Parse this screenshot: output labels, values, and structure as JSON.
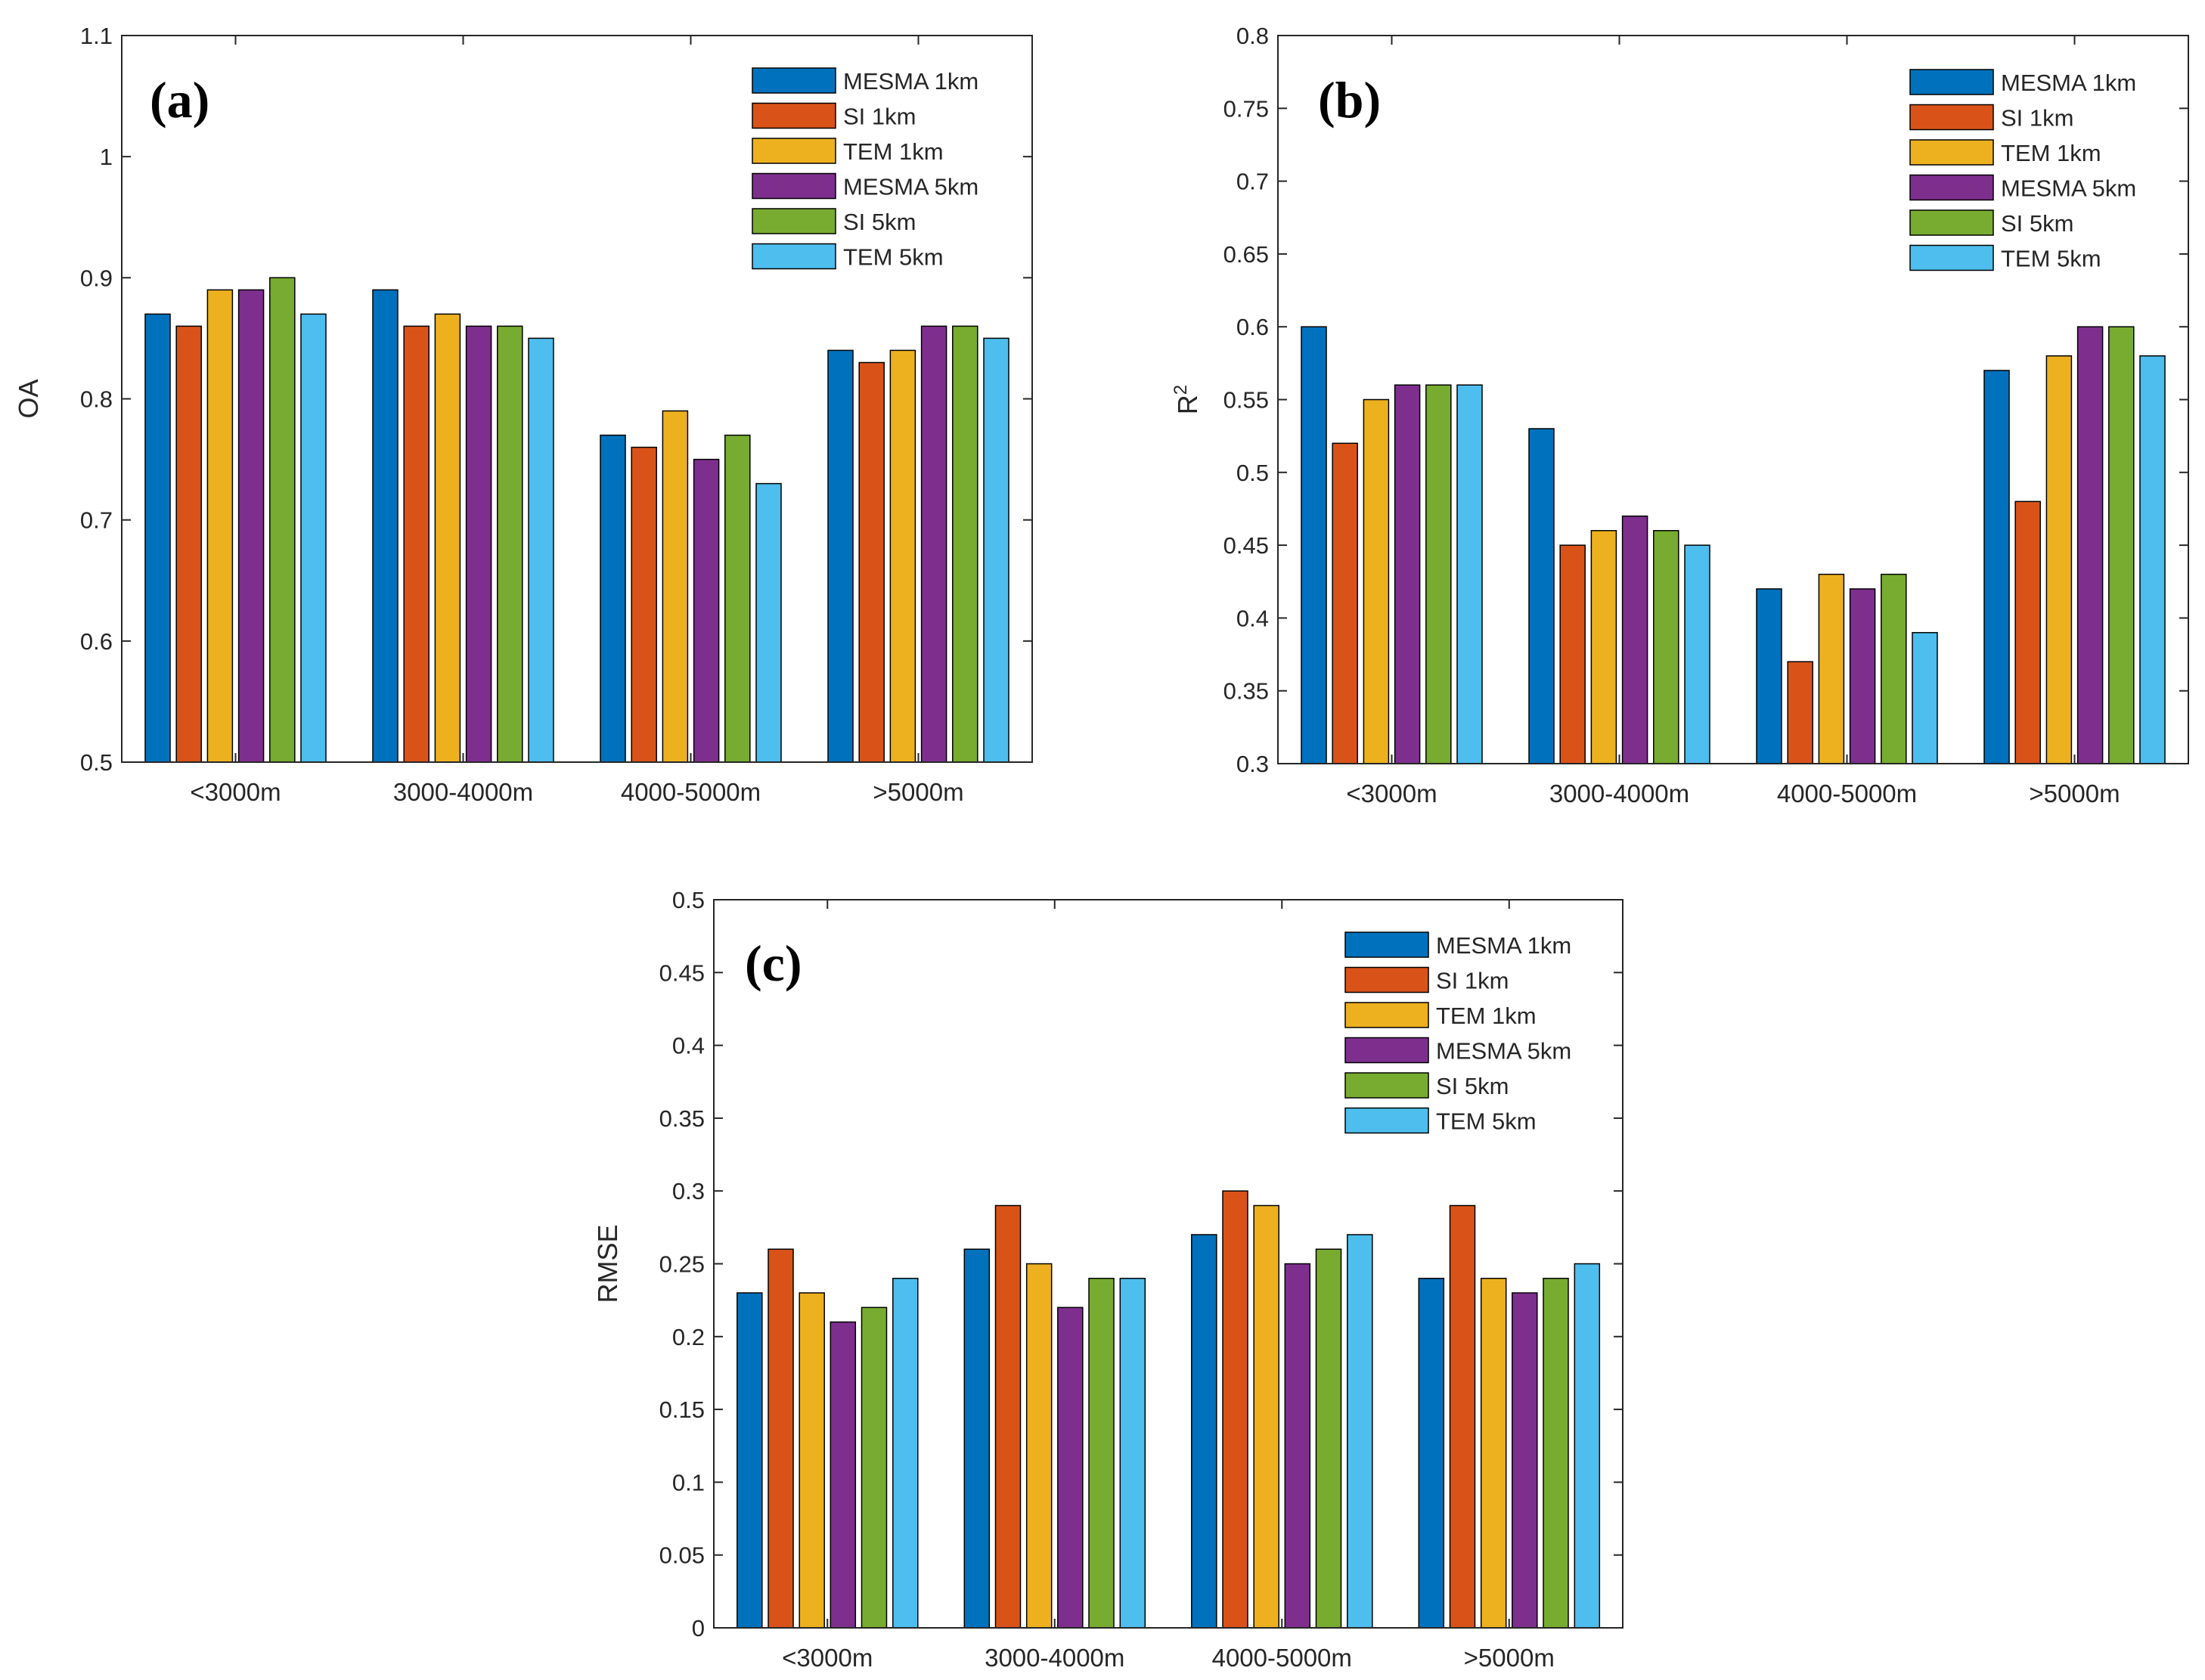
{
  "chart_data": [
    {
      "type": "bar",
      "panel_label": "(a)",
      "ylabel": "OA",
      "ylabel_sup": "",
      "categories": [
        "<3000m",
        "3000-4000m",
        "4000-5000m",
        ">5000m"
      ],
      "ylim": [
        0.5,
        1.1
      ],
      "yticks": [
        "0.5",
        "0.6",
        "0.7",
        "0.8",
        "0.9",
        "1",
        "1.1"
      ],
      "legend_position": "top-right",
      "series": [
        {
          "name": "MESMA 1km",
          "color": "#0072BD",
          "values": [
            0.87,
            0.89,
            0.77,
            0.84
          ]
        },
        {
          "name": "SI 1km",
          "color": "#D95319",
          "values": [
            0.86,
            0.86,
            0.76,
            0.83
          ]
        },
        {
          "name": "TEM 1km",
          "color": "#EDB120",
          "values": [
            0.89,
            0.87,
            0.79,
            0.84
          ]
        },
        {
          "name": "MESMA 5km",
          "color": "#7E2F8E",
          "values": [
            0.89,
            0.86,
            0.75,
            0.86
          ]
        },
        {
          "name": "SI 5km",
          "color": "#77AC30",
          "values": [
            0.9,
            0.86,
            0.77,
            0.86
          ]
        },
        {
          "name": "TEM 5km",
          "color": "#4DBEEE",
          "values": [
            0.87,
            0.85,
            0.73,
            0.85
          ]
        }
      ]
    },
    {
      "type": "bar",
      "panel_label": "(b)",
      "ylabel": "R",
      "ylabel_sup": "2",
      "categories": [
        "<3000m",
        "3000-4000m",
        "4000-5000m",
        ">5000m"
      ],
      "ylim": [
        0.3,
        0.8
      ],
      "yticks": [
        "0.3",
        "0.35",
        "0.4",
        "0.45",
        "0.5",
        "0.55",
        "0.6",
        "0.65",
        "0.7",
        "0.75",
        "0.8"
      ],
      "legend_position": "top-right",
      "series": [
        {
          "name": "MESMA 1km",
          "color": "#0072BD",
          "values": [
            0.6,
            0.53,
            0.42,
            0.57
          ]
        },
        {
          "name": "SI 1km",
          "color": "#D95319",
          "values": [
            0.52,
            0.45,
            0.37,
            0.48
          ]
        },
        {
          "name": "TEM 1km",
          "color": "#EDB120",
          "values": [
            0.55,
            0.46,
            0.43,
            0.58
          ]
        },
        {
          "name": "MESMA 5km",
          "color": "#7E2F8E",
          "values": [
            0.56,
            0.47,
            0.42,
            0.6
          ]
        },
        {
          "name": "SI 5km",
          "color": "#77AC30",
          "values": [
            0.56,
            0.46,
            0.43,
            0.6
          ]
        },
        {
          "name": "TEM 5km",
          "color": "#4DBEEE",
          "values": [
            0.56,
            0.45,
            0.39,
            0.58
          ]
        }
      ]
    },
    {
      "type": "bar",
      "panel_label": "(c)",
      "ylabel": "RMSE",
      "ylabel_sup": "",
      "categories": [
        "<3000m",
        "3000-4000m",
        "4000-5000m",
        ">5000m"
      ],
      "ylim": [
        0,
        0.5
      ],
      "yticks": [
        "0",
        "0.05",
        "0.1",
        "0.15",
        "0.2",
        "0.25",
        "0.3",
        "0.35",
        "0.4",
        "0.45",
        "0.5"
      ],
      "legend_position": "top-right",
      "series": [
        {
          "name": "MESMA 1km",
          "color": "#0072BD",
          "values": [
            0.23,
            0.26,
            0.27,
            0.24
          ]
        },
        {
          "name": "SI 1km",
          "color": "#D95319",
          "values": [
            0.26,
            0.29,
            0.3,
            0.29
          ]
        },
        {
          "name": "TEM 1km",
          "color": "#EDB120",
          "values": [
            0.23,
            0.25,
            0.29,
            0.24
          ]
        },
        {
          "name": "MESMA 5km",
          "color": "#7E2F8E",
          "values": [
            0.21,
            0.22,
            0.25,
            0.23
          ]
        },
        {
          "name": "SI 5km",
          "color": "#77AC30",
          "values": [
            0.22,
            0.24,
            0.26,
            0.24
          ]
        },
        {
          "name": "TEM 5km",
          "color": "#4DBEEE",
          "values": [
            0.24,
            0.24,
            0.27,
            0.25
          ]
        }
      ]
    }
  ]
}
